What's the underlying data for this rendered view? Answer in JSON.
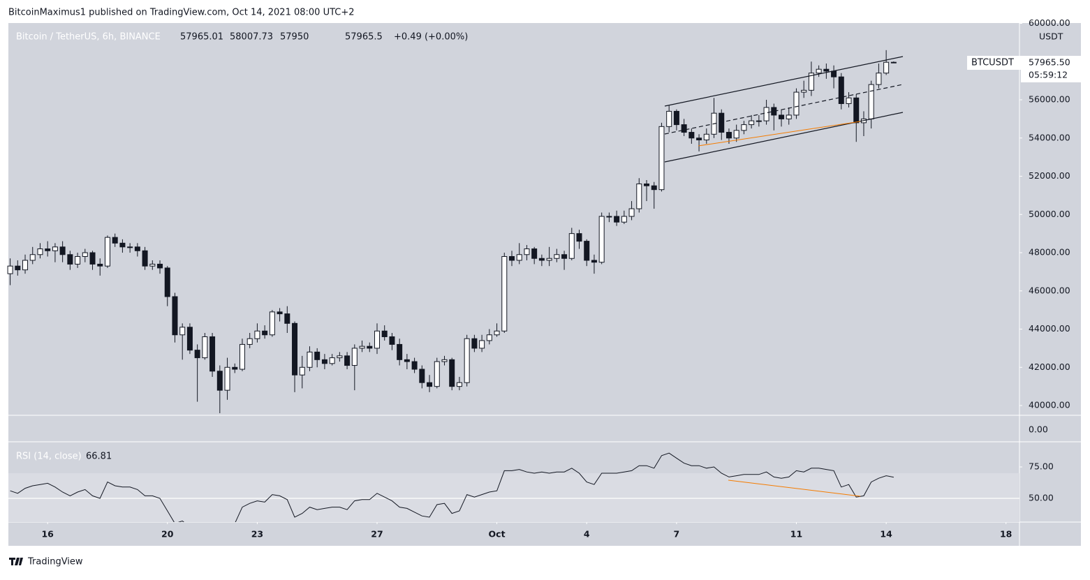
{
  "page": {
    "byline": "BitcoinMaximus1 published on TradingView.com, Oct 14, 2021 08:00 UTC+2",
    "footer": "TradingView"
  },
  "chart_data": {
    "type": "candlestick",
    "title": "Bitcoin / TetherUS, 6h, BINANCE",
    "change": "+0.49 (+0.00%)",
    "currency": "USDT",
    "symbol": "BTCUSDT",
    "last_price": "57965.50",
    "countdown": "05:59:12",
    "volume_axis_label": "0.00",
    "up_color": "#ffffff",
    "down_color": "#131722",
    "wick_color": "#131722",
    "x": [
      14.75,
      15,
      15.25,
      15.5,
      15.75,
      16,
      16.25,
      16.5,
      16.75,
      17,
      17.25,
      17.5,
      17.75,
      18,
      18.25,
      18.5,
      18.75,
      19,
      19.25,
      19.5,
      19.75,
      20,
      20.25,
      20.5,
      20.75,
      21,
      21.25,
      21.5,
      21.75,
      22,
      22.25,
      22.5,
      22.75,
      23,
      23.25,
      23.5,
      23.75,
      24,
      24.25,
      24.5,
      24.75,
      25,
      25.25,
      25.5,
      25.75,
      26,
      26.25,
      26.5,
      26.75,
      27,
      27.25,
      27.5,
      27.75,
      28,
      28.25,
      28.5,
      28.75,
      29,
      29.25,
      29.5,
      29.75,
      30,
      30.25,
      30.5,
      30.75,
      31,
      31.25,
      31.5,
      31.75,
      32,
      32.25,
      32.5,
      32.75,
      33,
      33.25,
      33.5,
      33.75,
      34,
      34.25,
      34.5,
      34.75,
      35,
      35.25,
      35.5,
      35.75,
      36,
      36.25,
      36.5,
      36.75,
      37,
      37.25,
      37.5,
      37.75,
      38,
      38.25,
      38.5,
      38.75,
      39,
      39.25,
      39.5,
      39.75,
      40,
      40.25,
      40.5,
      40.75,
      41,
      41.25,
      41.5,
      41.75,
      42,
      42.25,
      42.5,
      42.75,
      43,
      43.25,
      43.5,
      43.75,
      44,
      44.25
    ],
    "open": [
      46900,
      47300,
      47100,
      47600,
      47900,
      48200,
      48100,
      48300,
      47900,
      47400,
      47800,
      48000,
      47400,
      47300,
      48800,
      48500,
      48300,
      48300,
      48100,
      47300,
      47400,
      47200,
      45700,
      43700,
      44100,
      42900,
      42500,
      43600,
      41800,
      40800,
      42000,
      41900,
      43200,
      43500,
      43900,
      43700,
      44900,
      44800,
      44300,
      41600,
      42000,
      42800,
      42400,
      42200,
      42500,
      42600,
      42100,
      43000,
      43100,
      43000,
      43900,
      43600,
      43200,
      42400,
      42300,
      41900,
      41200,
      41000,
      42300,
      42400,
      41000,
      41200,
      43500,
      43000,
      43400,
      43700,
      43900,
      47800,
      47600,
      47900,
      48200,
      47700,
      47600,
      47700,
      47900,
      47700,
      49000,
      48600,
      47600,
      47500,
      49900,
      49900,
      49600,
      49900,
      50300,
      51600,
      51500,
      51300,
      54600,
      55400,
      54700,
      54300,
      54000,
      53900,
      54200,
      55300,
      54300,
      54000,
      54400,
      54700,
      54900,
      54900,
      55600,
      55200,
      55000,
      55200,
      56400,
      56500,
      57400,
      57600,
      57500,
      57200,
      55800,
      56100,
      54800,
      55000,
      56800,
      57400,
      57965.01
    ],
    "high": [
      47700,
      47600,
      47900,
      48300,
      48500,
      48600,
      48500,
      48600,
      48100,
      48000,
      48200,
      48100,
      47700,
      48900,
      49000,
      48700,
      48500,
      48500,
      48300,
      47600,
      47600,
      47300,
      45900,
      44300,
      44300,
      43200,
      43800,
      43800,
      42100,
      42500,
      42200,
      43500,
      43800,
      44300,
      44200,
      45000,
      45100,
      45200,
      44400,
      42600,
      43100,
      43000,
      42700,
      42700,
      42800,
      42800,
      43200,
      43400,
      43300,
      44300,
      44200,
      43800,
      43500,
      42700,
      42500,
      42100,
      41600,
      42500,
      42600,
      42500,
      41500,
      43700,
      43700,
      43700,
      44000,
      44300,
      48000,
      48100,
      48500,
      48400,
      48300,
      47900,
      48300,
      48200,
      48100,
      49300,
      49200,
      48700,
      47900,
      50100,
      50100,
      50200,
      50200,
      50700,
      51900,
      51800,
      51700,
      54800,
      55700,
      55500,
      55000,
      54500,
      54200,
      54500,
      56100,
      55500,
      54500,
      54700,
      54900,
      55200,
      55200,
      56000,
      55800,
      55500,
      55600,
      56600,
      57000,
      58000,
      57800,
      57900,
      57800,
      57400,
      56400,
      56300,
      55400,
      57000,
      57900,
      58600,
      58007.73
    ],
    "low": [
      46300,
      46800,
      46900,
      47400,
      47700,
      47800,
      47500,
      47500,
      47100,
      47200,
      47500,
      47100,
      46800,
      47200,
      48300,
      48000,
      48000,
      47800,
      47100,
      47100,
      46900,
      45200,
      43300,
      42400,
      42700,
      40200,
      42400,
      41500,
      39600,
      40300,
      41700,
      41800,
      43000,
      43300,
      43500,
      43600,
      44400,
      43800,
      40700,
      40900,
      41800,
      42000,
      41900,
      42100,
      42300,
      41900,
      40800,
      42800,
      42800,
      42700,
      43400,
      42900,
      42100,
      41900,
      41700,
      40900,
      40700,
      40900,
      42100,
      40800,
      40800,
      41000,
      42800,
      42800,
      43200,
      43600,
      43800,
      47300,
      47400,
      47600,
      47400,
      47300,
      47300,
      47500,
      47100,
      47600,
      48200,
      47300,
      46900,
      47400,
      49600,
      49400,
      49500,
      49700,
      50100,
      50700,
      50300,
      51200,
      54300,
      54400,
      54100,
      53700,
      53300,
      53700,
      54000,
      53900,
      53700,
      53800,
      54200,
      54500,
      54600,
      54700,
      54400,
      54600,
      54700,
      55000,
      56100,
      56200,
      57200,
      57100,
      56600,
      55500,
      55600,
      53800,
      54100,
      54500,
      56600,
      57300,
      57950
    ],
    "close": [
      47300,
      47100,
      47600,
      47900,
      48200,
      48100,
      48300,
      47900,
      47400,
      47800,
      48000,
      47400,
      47300,
      48800,
      48500,
      48300,
      48300,
      48100,
      47300,
      47400,
      47200,
      45700,
      43700,
      44100,
      42900,
      42500,
      43600,
      41800,
      40800,
      42000,
      41900,
      43200,
      43500,
      43900,
      43700,
      44900,
      44800,
      44300,
      41600,
      42000,
      42800,
      42400,
      42200,
      42500,
      42600,
      42100,
      43000,
      43100,
      43000,
      43900,
      43600,
      43200,
      42400,
      42300,
      41900,
      41200,
      41000,
      42300,
      42400,
      41000,
      41200,
      43500,
      43000,
      43400,
      43700,
      43900,
      47800,
      47600,
      47900,
      48200,
      47700,
      47600,
      47700,
      47900,
      47700,
      49000,
      48600,
      47600,
      47500,
      49900,
      49900,
      49600,
      49900,
      50300,
      51600,
      51500,
      51300,
      54600,
      55400,
      54700,
      54300,
      54000,
      53900,
      54200,
      55300,
      54300,
      54000,
      54400,
      54700,
      54900,
      54900,
      55600,
      55200,
      55000,
      55200,
      56400,
      56500,
      57400,
      57600,
      57500,
      57200,
      55800,
      56100,
      54800,
      55000,
      56800,
      57400,
      57965.01,
      57965.5
    ],
    "xlim": [
      14.69,
      48.45
    ],
    "xticks": [
      16,
      20,
      23,
      27,
      {
        "value": 31,
        "label": "Oct"
      },
      {
        "value": 34,
        "label": "4"
      },
      {
        "value": 37,
        "label": "7"
      },
      {
        "value": 41,
        "label": "11"
      },
      {
        "value": 44,
        "label": "14"
      },
      {
        "value": 48,
        "label": "18"
      }
    ],
    "ylim": [
      39490,
      60000
    ],
    "yticks": [
      {
        "value": 40000,
        "label": "40000.00"
      },
      {
        "value": 42000,
        "label": "42000.00"
      },
      {
        "value": 44000,
        "label": "44000.00"
      },
      {
        "value": 46000,
        "label": "46000.00"
      },
      {
        "value": 48000,
        "label": "48000.00"
      },
      {
        "value": 50000,
        "label": "50000.00"
      },
      {
        "value": 52000,
        "label": "52000.00"
      },
      {
        "value": 54000,
        "label": "54000.00"
      },
      {
        "value": 56000,
        "label": "56000.00"
      },
      {
        "value": 58000,
        "label": "58000.00"
      },
      {
        "value": 60000,
        "label": "60000.00"
      }
    ],
    "rsi": {
      "type": "line",
      "name": "RSI (14, close)",
      "color": "#131722",
      "values": [
        56,
        54,
        58,
        60,
        61,
        62,
        59,
        55,
        52,
        55,
        57,
        52,
        50,
        63,
        60,
        59,
        59,
        57,
        52,
        52,
        50,
        40,
        30,
        32,
        27,
        26,
        30,
        24,
        20,
        30,
        30,
        43,
        46,
        48,
        47,
        53,
        52,
        49,
        35,
        38,
        43,
        41,
        42,
        43,
        43,
        41,
        48,
        49,
        49,
        54,
        51,
        48,
        43,
        42,
        39,
        36,
        35,
        45,
        46,
        38,
        40,
        53,
        51,
        53,
        55,
        56,
        72,
        72,
        73,
        71,
        70,
        71,
        70,
        71,
        71,
        74,
        70,
        63,
        61,
        70,
        70,
        70,
        71,
        72,
        76,
        76,
        74,
        84,
        86,
        82,
        78,
        76,
        76,
        74,
        75,
        70,
        67,
        68,
        69,
        69,
        69,
        71,
        67,
        66,
        67,
        72,
        71,
        74,
        74,
        73,
        72,
        59,
        61,
        51,
        52,
        63,
        66,
        68,
        66.81
      ],
      "ylim": [
        31.1,
        95
      ],
      "yticks": [
        {
          "value": 50,
          "label": "50.00"
        },
        {
          "value": 75,
          "label": "75.00"
        }
      ],
      "band": [
        30,
        70
      ]
    }
  }
}
